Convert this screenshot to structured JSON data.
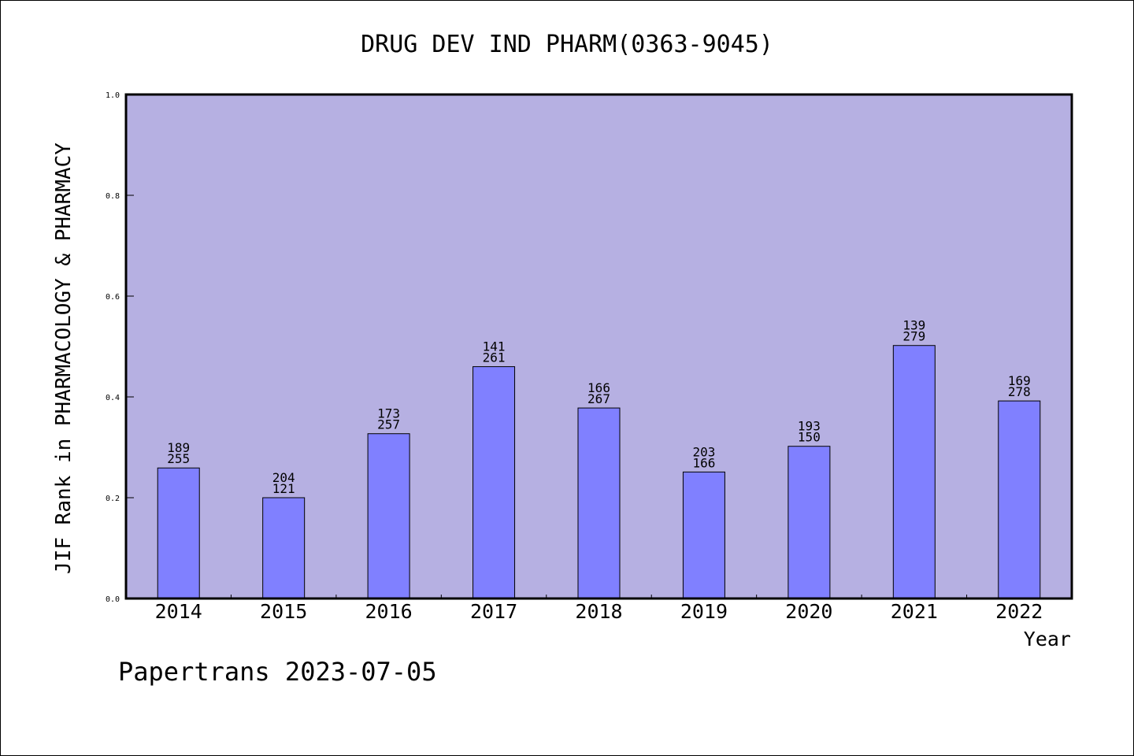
{
  "chart_data": {
    "type": "bar",
    "title": "DRUG DEV IND PHARM(0363-9045)",
    "xlabel": "Year",
    "ylabel": "JIF Rank in PHARMACOLOGY & PHARMACY",
    "ylim": [
      0,
      1.0
    ],
    "yticks": [
      "0.0",
      "0.2",
      "0.4",
      "0.6",
      "0.8",
      "1.0"
    ],
    "categories": [
      "2014",
      "2015",
      "2016",
      "2017",
      "2018",
      "2019",
      "2020",
      "2021",
      "2022"
    ],
    "values": [
      0.259,
      0.2,
      0.327,
      0.46,
      0.378,
      0.251,
      0.302,
      0.502,
      0.392
    ],
    "label_top": [
      "189",
      "204",
      "173",
      "141",
      "166",
      "203",
      "193",
      "139",
      "169"
    ],
    "label_bottom": [
      "255",
      "121",
      "257",
      "261",
      "267",
      "166",
      "150",
      "279",
      "278"
    ],
    "grid": false,
    "colors": {
      "plot_background": "#b6b0e2",
      "bar_fill": "#8080ff",
      "outline": "#000000"
    }
  },
  "footer": "Papertrans 2023-07-05"
}
